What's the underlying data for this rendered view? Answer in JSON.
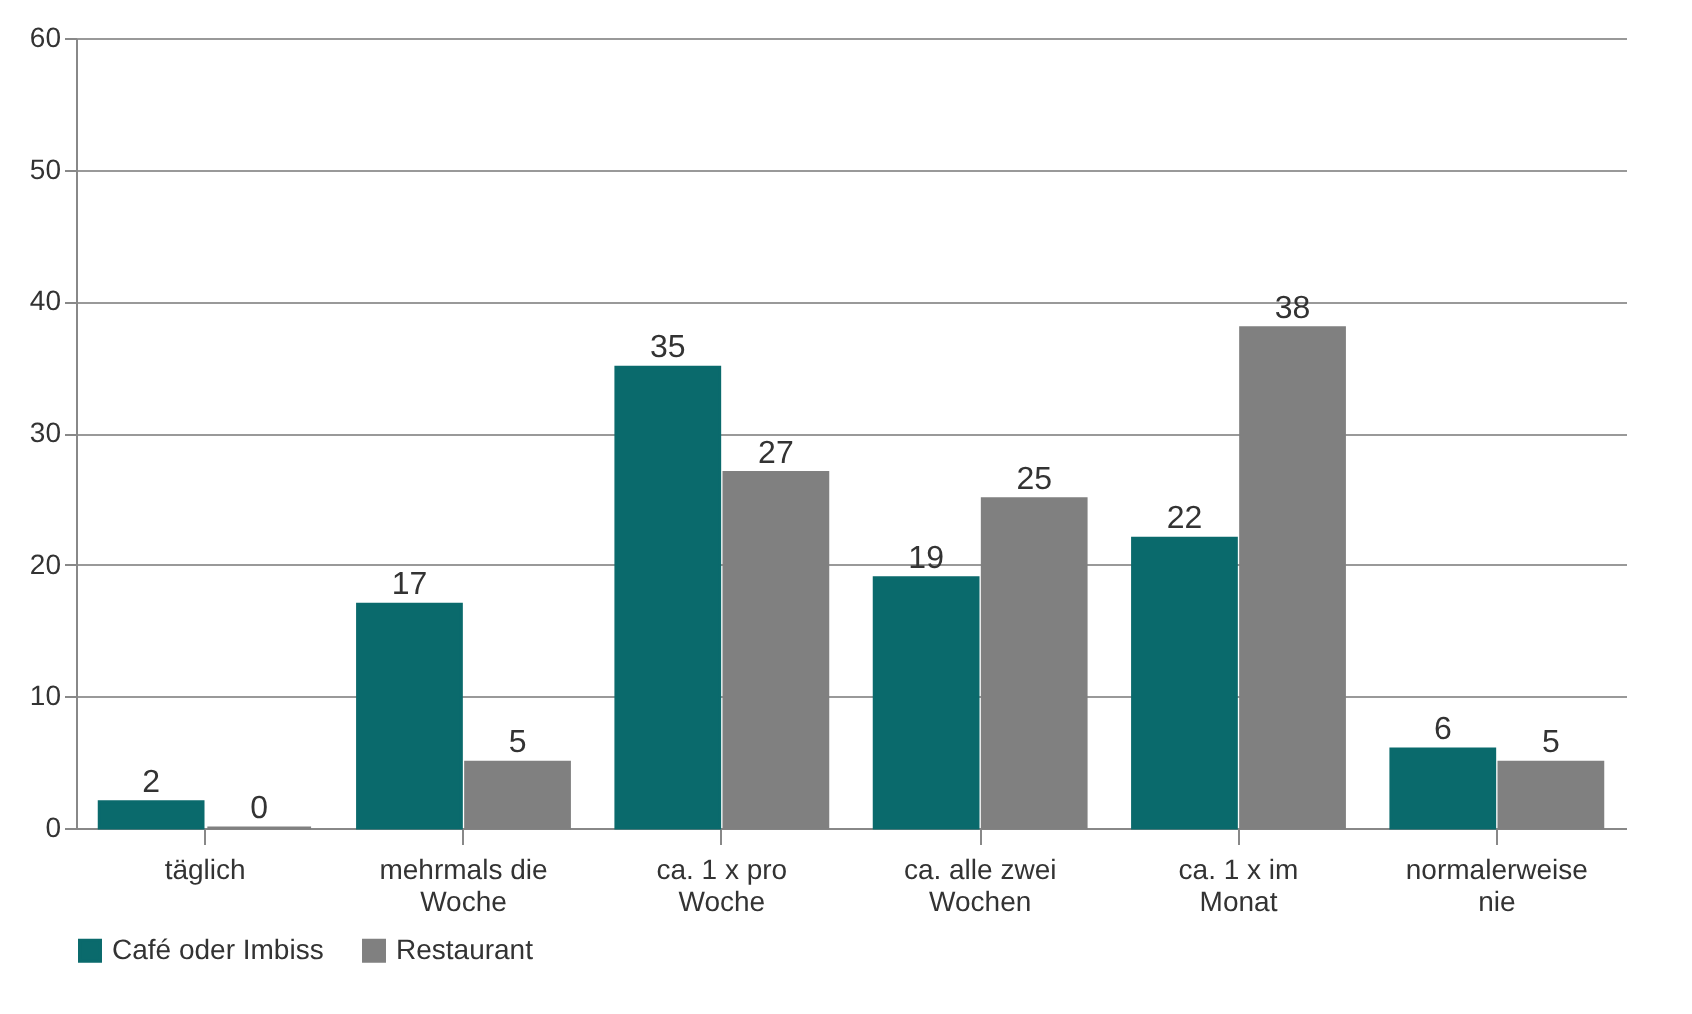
{
  "chart_data": {
    "type": "bar",
    "categories": [
      "täglich",
      "mehrmals die Woche",
      "ca. 1 x pro Woche",
      "ca. alle zwei Wochen",
      "ca. 1 x im Monat",
      "normalerweise nie"
    ],
    "series": [
      {
        "name": "Café oder Imbiss",
        "color": "#0a6a6c",
        "values": [
          2,
          17,
          35,
          19,
          22,
          6
        ]
      },
      {
        "name": "Restaurant",
        "color": "#808080",
        "values": [
          0,
          5,
          27,
          25,
          38,
          5
        ]
      }
    ],
    "ylim": [
      0,
      60
    ],
    "yticks": [
      0,
      10,
      20,
      30,
      40,
      50,
      60
    ],
    "grid": "y",
    "legend": "bottom",
    "data_labels": true
  }
}
